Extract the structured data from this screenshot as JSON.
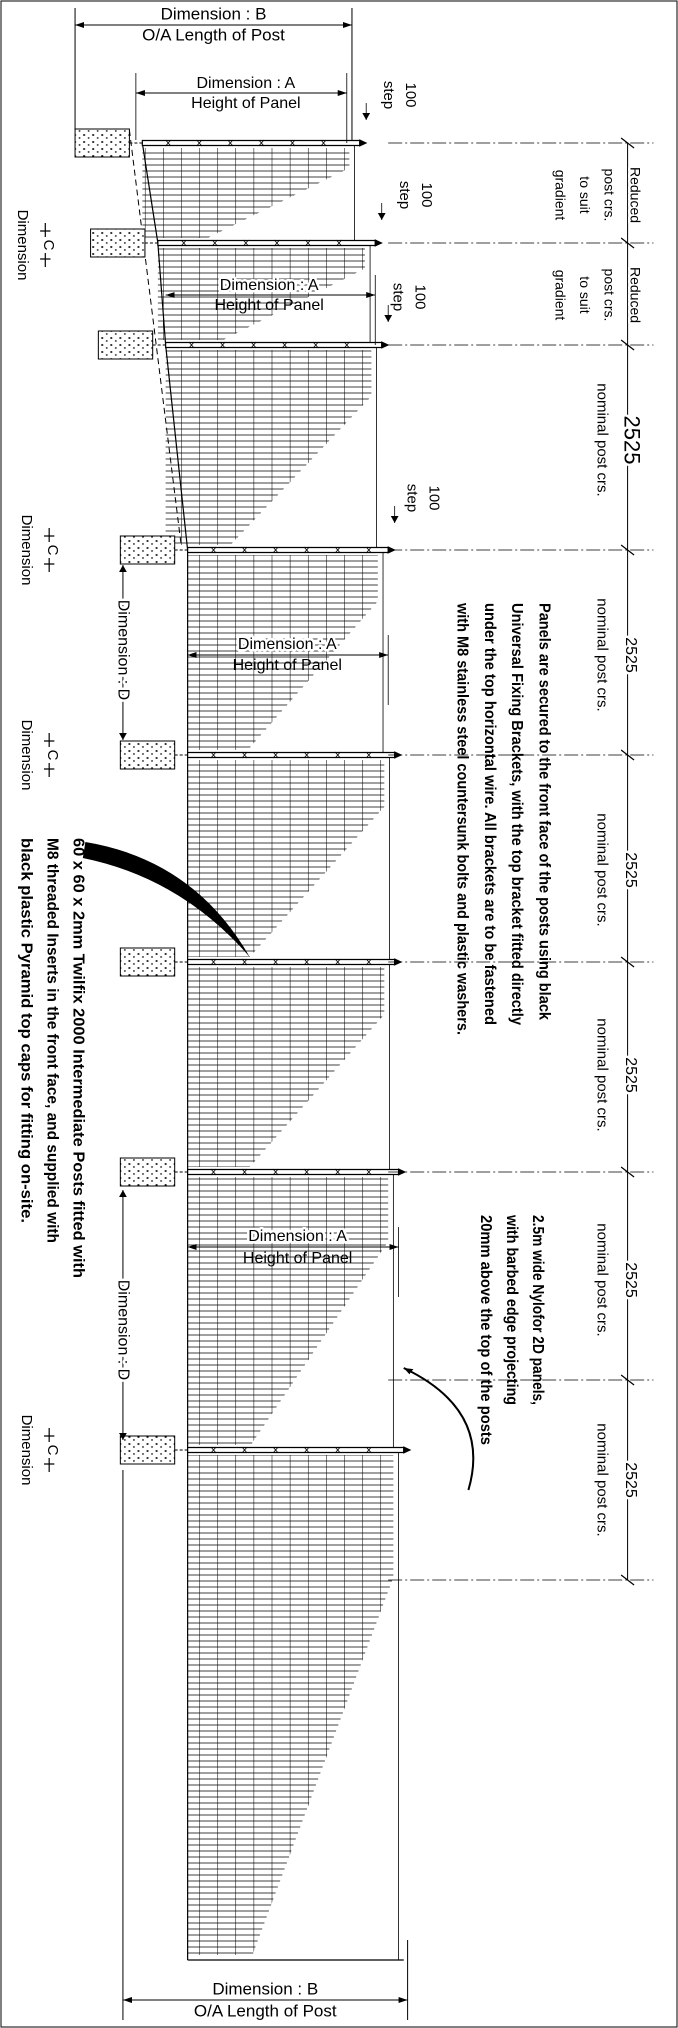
{
  "dimension_b": [
    {
      "name": "Dimension : B",
      "caption": "O/A Length of Post"
    },
    {
      "name": "Dimension : B",
      "caption": "O/A Length of Post"
    }
  ],
  "dimension_a": [
    {
      "name": "Dimension : A",
      "caption": "Height of Panel"
    },
    {
      "name": "Dimension : A",
      "caption": "Height of Panel"
    },
    {
      "name": "Dimension : A",
      "caption": "Height of Panel"
    },
    {
      "name": "Dimension : A",
      "caption": "Height of Panel"
    }
  ],
  "step_labels": [
    {
      "value": 100,
      "label": "step"
    },
    {
      "value": 100,
      "label": "step"
    },
    {
      "value": 100,
      "label": "step"
    },
    {
      "value": 100,
      "label": "step"
    }
  ],
  "gradient_labels": [
    [
      "Reduced",
      "post crs.",
      "to suit",
      "gradient"
    ],
    [
      "Reduced",
      "post crs.",
      "to suit",
      "gradient"
    ]
  ],
  "post_centres": [
    {
      "value": 2525,
      "label": "nominal post crs."
    },
    {
      "value": 2525,
      "label": "nominal post crs."
    },
    {
      "value": 2525,
      "label": "nominal post crs."
    },
    {
      "value": 2525,
      "label": "nominal post crs."
    },
    {
      "value": 2525,
      "label": "nominal post crs."
    },
    {
      "value": 2525,
      "label": "nominal post crs."
    }
  ],
  "c_dimension": [
    {
      "letter": "C",
      "label": "Dimension"
    },
    {
      "letter": "C",
      "label": "Dimension"
    },
    {
      "letter": "C",
      "label": "Dimension"
    },
    {
      "letter": "C",
      "label": "Dimension"
    }
  ],
  "dimension_d": [
    "Dimension : D",
    "Dimension : D"
  ],
  "notes": {
    "panel_fixing": [
      "Panels are secured to the front face of the posts using black",
      "Universal Fixing Brackets, with the top bracket fitted directly",
      "under the top horizontal wire. All brackets are to be fastened",
      "with M8 stainless steel countersunk bolts and plastic washers."
    ],
    "panels": [
      "2.5m wide Nylofor 2D panels,",
      "with barbed edge projecting",
      "20mm above the top of the posts"
    ],
    "posts": [
      "60 x 60 x 2mm Twilfix 2000 Intermediate Posts fitted with",
      "M8 threaded Inserts in the front face, and supplied with",
      "black plastic Pyramid top caps for fitting on-site."
    ]
  }
}
